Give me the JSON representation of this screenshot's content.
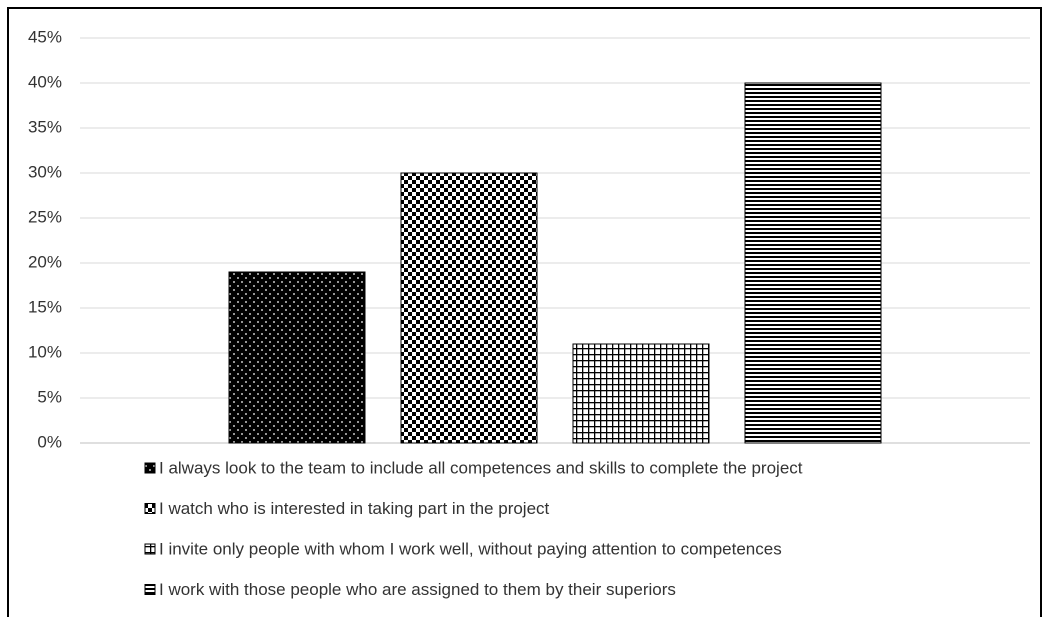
{
  "chart_data": {
    "type": "bar",
    "series": [
      {
        "name": "I always look to the team to include all competences and skills to complete the project",
        "color": "#000000",
        "pattern": "dots",
        "values": [
          19
        ]
      },
      {
        "name": "I watch who is interested in taking part in the project",
        "color": "#000000",
        "pattern": "checker",
        "values": [
          30
        ]
      },
      {
        "name": "I invite only people with whom I work well, without paying attention to competences",
        "color": "#000000",
        "pattern": "grid",
        "values": [
          11
        ]
      },
      {
        "name": "I work with those people who are assigned to them by their superiors",
        "color": "#000000",
        "pattern": "horizontal-lines",
        "values": [
          40
        ]
      }
    ],
    "ylim": [
      0,
      45
    ],
    "yticks": [
      {
        "value": 0,
        "label": "0%"
      },
      {
        "value": 5,
        "label": "5%"
      },
      {
        "value": 10,
        "label": "10%"
      },
      {
        "value": 15,
        "label": "15%"
      },
      {
        "value": 20,
        "label": "20%"
      },
      {
        "value": 25,
        "label": "25%"
      },
      {
        "value": 30,
        "label": "30%"
      },
      {
        "value": 35,
        "label": "35%"
      },
      {
        "value": 40,
        "label": "40%"
      },
      {
        "value": 45,
        "label": "45%"
      }
    ],
    "grid": true,
    "legend": "bottom"
  }
}
